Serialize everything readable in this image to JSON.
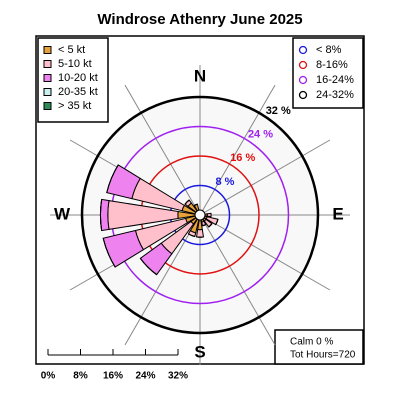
{
  "chart_data": {
    "type": "windrose",
    "title": "Windrose  Athenry June 2025",
    "categories": [
      "N",
      null,
      null,
      null,
      "E",
      null,
      null,
      null,
      "S",
      null,
      null,
      null,
      "W",
      null,
      null,
      null
    ],
    "series": [
      {
        "name": "< 5  kt",
        "color": "#e8a23a",
        "values": [
          1,
          1,
          1,
          1,
          2,
          2,
          2,
          2,
          4,
          5,
          3,
          4,
          6,
          5,
          4,
          3
        ]
      },
      {
        "name": "5-10 kt",
        "color": "#ffc0cb",
        "values": [
          0,
          0,
          0,
          0,
          1,
          3,
          2,
          1,
          2,
          1,
          10,
          14,
          19,
          14,
          1,
          0
        ]
      },
      {
        "name": "10-20 kt",
        "color": "#ee82ee",
        "values": [
          0,
          0,
          0,
          0,
          0,
          0,
          0,
          0,
          0,
          0,
          7,
          9,
          2,
          7,
          0,
          0
        ]
      },
      {
        "name": "20-35 kt",
        "color": "#c8f0f0",
        "values": [
          0,
          0,
          0,
          0,
          0,
          0,
          0,
          0,
          0,
          0,
          0,
          0,
          0,
          0,
          0,
          0
        ]
      },
      {
        "name": "> 35 kt",
        "color": "#2e8b57",
        "values": [
          0,
          0,
          0,
          0,
          0,
          0,
          0,
          0,
          0,
          0,
          0,
          0,
          0,
          0,
          0,
          0
        ]
      }
    ],
    "rlim": [
      0,
      32
    ],
    "rings": [
      {
        "value": 8,
        "label": "8 %",
        "legend": "< 8%",
        "color": "#1a1adf"
      },
      {
        "value": 16,
        "label": "16 %",
        "legend": "8-16%",
        "color": "#e01010"
      },
      {
        "value": 24,
        "label": "24 %",
        "legend": "16-24%",
        "color": "#a020f0"
      },
      {
        "value": 32,
        "label": "32 %",
        "legend": "24-32%",
        "color": "#000000"
      }
    ],
    "rticks": [
      {
        "value": 0,
        "label": "0%"
      },
      {
        "value": 8,
        "label": "8%"
      },
      {
        "value": 16,
        "label": "16%"
      },
      {
        "value": 24,
        "label": "24%"
      },
      {
        "value": 32,
        "label": "32%"
      }
    ],
    "calm_label": "Calm 0 %",
    "hours_label": "Tot Hours=720"
  }
}
